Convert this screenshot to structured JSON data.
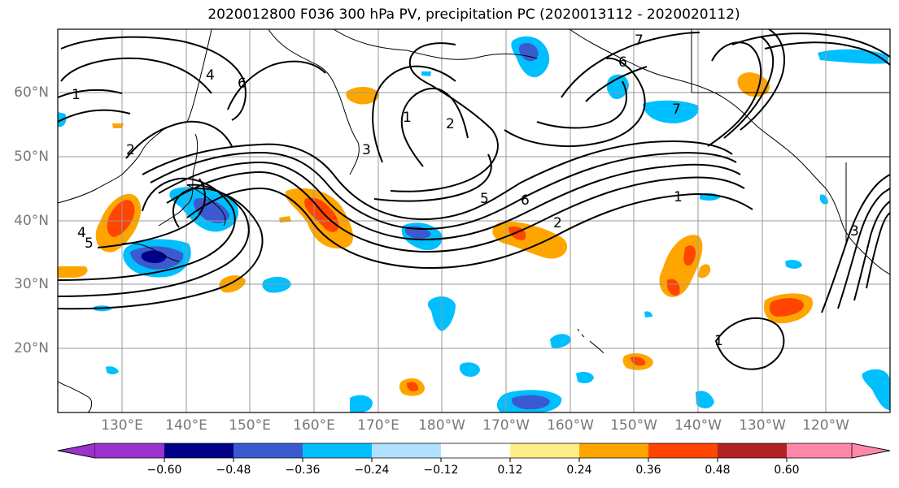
{
  "title": "2020012800 F036 300 hPa PV, precipitation PC (2020013112 - 2020020112)",
  "lat_labels": [
    "60°N",
    "50°N",
    "40°N",
    "30°N",
    "20°N"
  ],
  "lon_labels": [
    "130°E",
    "140°E",
    "150°E",
    "160°E",
    "170°E",
    "180°W",
    "170°W",
    "160°W",
    "150°W",
    "140°W",
    "130°W",
    "120°W"
  ],
  "colorbar": {
    "ticks": [
      "−0.60",
      "−0.48",
      "−0.36",
      "−0.24",
      "−0.12",
      "0.12",
      "0.24",
      "0.36",
      "0.48",
      "0.60"
    ],
    "colors": [
      "#9933cc",
      "#000088",
      "#3a5bd0",
      "#00bfff",
      "#b0e2ff",
      "#ffffff",
      "#ffee88",
      "#ffa500",
      "#ff4500",
      "#b22222",
      "#ff88aa"
    ]
  },
  "pv_contour_labels": [
    "1",
    "2",
    "3",
    "4",
    "5",
    "6",
    "7"
  ],
  "colors": {
    "positive": "#ffa500",
    "negative": "#00bfff"
  }
}
